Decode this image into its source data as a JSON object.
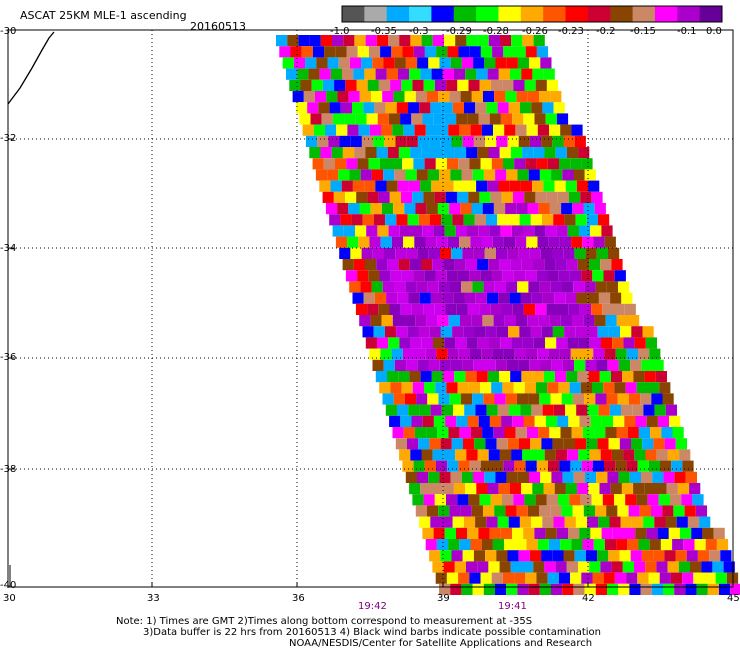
{
  "header": {
    "product": "ASCAT 25KM MLE-1 ascending",
    "date": "20160513"
  },
  "colorbar": {
    "labels": [
      "-1.0",
      "-0.35",
      "-0.3",
      "-0.29",
      "-0.28",
      "-0.26",
      "-0.23",
      "-0.2",
      "-0.15",
      "-0.1",
      "0.0"
    ],
    "colors": [
      "#555555",
      "#aaaaaa",
      "#00aaff",
      "#33ddff",
      "#0000ff",
      "#00bb00",
      "#00ff00",
      "#ffff00",
      "#ffaa00",
      "#ff5500",
      "#ff0000",
      "#cc0033",
      "#884400",
      "#cc8866",
      "#ff00ff",
      "#aa00cc",
      "#660099"
    ]
  },
  "map": {
    "lat_labels": [
      "-30",
      "-32",
      "-34",
      "-36",
      "-38",
      "-40"
    ],
    "lon_labels": [
      "30",
      "33",
      "36",
      "39",
      "42",
      "45"
    ]
  },
  "times": [
    "19:42",
    "19:41"
  ],
  "notes": [
    "Note: 1) Times are GMT 2)Times along bottom correspond to measurement at -35S",
    "3)Data buffer is 22 hrs from 20160513 4) Black wind barbs indicate possible contamination",
    "NOAA/NESDIS/Center for Satellite Applications and Research"
  ]
}
